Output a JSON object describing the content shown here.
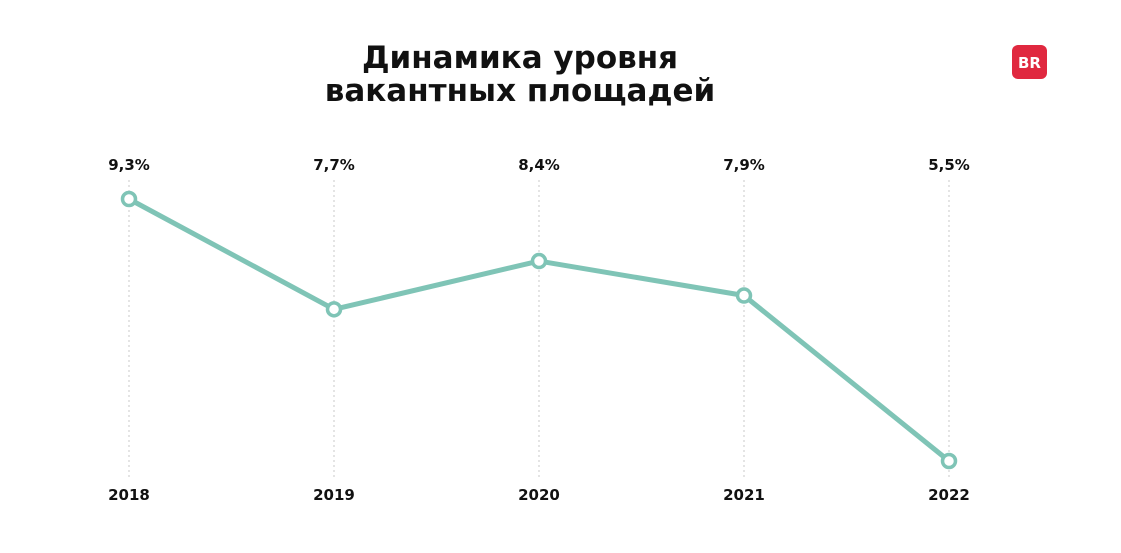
{
  "chart_data": {
    "type": "line",
    "title": [
      "Динамика  уровня",
      "вакантных площадей"
    ],
    "categories": [
      "2018",
      "2019",
      "2020",
      "2021",
      "2022"
    ],
    "values": [
      9.3,
      7.7,
      8.4,
      7.9,
      5.5
    ],
    "value_labels": [
      "9,3%",
      "7,7%",
      "8,4%",
      "7,9%",
      "5,5%"
    ],
    "grid": "vertical dotted lines at each year",
    "legend": "none"
  },
  "logo": {
    "text": "BR",
    "color": "#e0283f"
  },
  "colors": {
    "line": "#7fc4b6",
    "grid": "#c8c8c8",
    "text": "#111111",
    "background": "#ffffff"
  }
}
